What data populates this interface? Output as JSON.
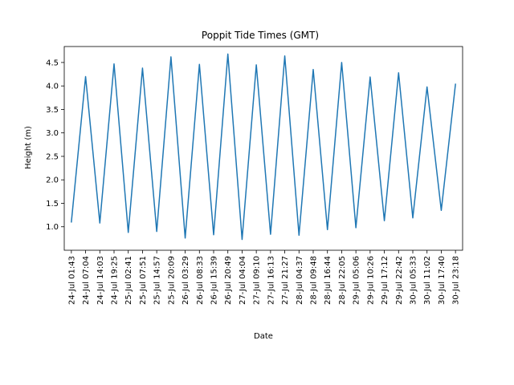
{
  "chart_data": {
    "type": "line",
    "title": "Poppit Tide Times (GMT)",
    "xlabel": "Date",
    "ylabel": "Height (m)",
    "ylim": [
      0.5,
      4.84
    ],
    "yticks": [
      1.0,
      1.5,
      2.0,
      2.5,
      3.0,
      3.5,
      4.0,
      4.5
    ],
    "grid": false,
    "line_color": "#1f77b4",
    "categories": [
      "24-Jul 01:43",
      "24-Jul 07:04",
      "24-Jul 14:03",
      "24-Jul 19:25",
      "25-Jul 02:41",
      "25-Jul 07:51",
      "25-Jul 14:57",
      "25-Jul 20:09",
      "26-Jul 03:29",
      "26-Jul 08:33",
      "26-Jul 15:39",
      "26-Jul 20:49",
      "27-Jul 04:04",
      "27-Jul 09:10",
      "27-Jul 16:13",
      "27-Jul 21:27",
      "28-Jul 04:37",
      "28-Jul 09:48",
      "28-Jul 16:44",
      "28-Jul 22:05",
      "29-Jul 05:06",
      "29-Jul 10:26",
      "29-Jul 17:12",
      "29-Jul 22:42",
      "30-Jul 05:33",
      "30-Jul 11:02",
      "30-Jul 17:40",
      "30-Jul 23:18"
    ],
    "series": [
      {
        "values": [
          1.1,
          4.2,
          1.08,
          4.47,
          0.88,
          4.38,
          0.9,
          4.62,
          0.76,
          4.46,
          0.83,
          4.68,
          0.73,
          4.45,
          0.84,
          4.64,
          0.82,
          4.35,
          0.94,
          4.5,
          0.98,
          4.19,
          1.13,
          4.28,
          1.19,
          3.98,
          1.35,
          4.04
        ]
      }
    ]
  }
}
